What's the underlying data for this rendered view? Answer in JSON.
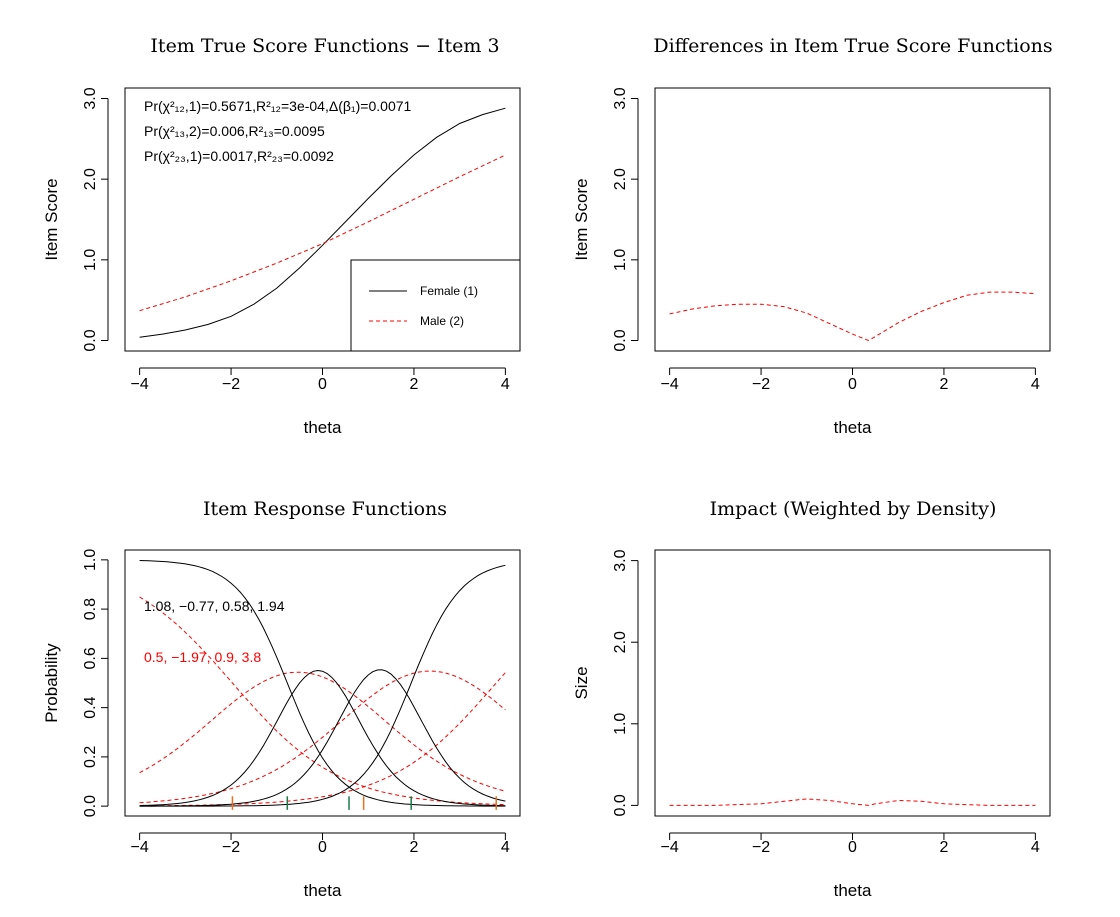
{
  "chart_data": [
    {
      "type": "line",
      "title": "Item True Score Functions − Item 3",
      "xlabel": "theta",
      "ylabel": "Item Score",
      "xlim": [
        -4,
        4
      ],
      "ylim": [
        0,
        3
      ],
      "xticks": [
        "-4",
        "-2",
        "0",
        "2",
        "4"
      ],
      "yticks": [
        "0.0",
        "1.0",
        "2.0",
        "3.0"
      ],
      "annotations": [
        {
          "text": "Pr(χ²₁₂,1)=0.5671,R²₁₂=3e-04,Δ(β₁)=0.0071"
        },
        {
          "text": "Pr(χ²₁₃,2)=0.006,R²₁₃=0.0095"
        },
        {
          "text": "Pr(χ²₂₃,1)=0.0017,R²₂₃=0.0092"
        }
      ],
      "legend": {
        "position": "bottom-right",
        "entries": [
          "Female (1)",
          "Male (2)"
        ]
      },
      "series": [
        {
          "name": "Female (1)",
          "color": "#000000",
          "dash": "solid",
          "x": [
            -4,
            -3.5,
            -3,
            -2.5,
            -2,
            -1.5,
            -1,
            -0.5,
            0,
            0.5,
            1,
            1.5,
            2,
            2.5,
            3,
            3.5,
            4
          ],
          "y": [
            0.04,
            0.08,
            0.13,
            0.2,
            0.3,
            0.45,
            0.65,
            0.9,
            1.18,
            1.47,
            1.76,
            2.04,
            2.3,
            2.52,
            2.69,
            2.8,
            2.88
          ]
        },
        {
          "name": "Male (2)",
          "color": "#ff0000",
          "dash": "dashed",
          "x": [
            -4,
            -3,
            -2,
            -1,
            0,
            1,
            2,
            3,
            4
          ],
          "y": [
            0.37,
            0.54,
            0.74,
            0.96,
            1.2,
            1.47,
            1.75,
            2.03,
            2.3
          ]
        }
      ]
    },
    {
      "type": "line",
      "title": "Differences in Item True Score Functions",
      "xlabel": "theta",
      "ylabel": "Item Score",
      "xlim": [
        -4,
        4
      ],
      "ylim": [
        0,
        3
      ],
      "xticks": [
        "-4",
        "-2",
        "0",
        "2",
        "4"
      ],
      "yticks": [
        "0.0",
        "1.0",
        "2.0",
        "3.0"
      ],
      "series": [
        {
          "name": "difference",
          "color": "#ff0000",
          "dash": "dashed",
          "x": [
            -4,
            -3.5,
            -3,
            -2.5,
            -2,
            -1.5,
            -1,
            -0.5,
            0,
            0.35,
            0.5,
            1,
            1.5,
            2,
            2.5,
            3,
            3.5,
            4
          ],
          "y": [
            0.33,
            0.39,
            0.43,
            0.45,
            0.45,
            0.42,
            0.34,
            0.21,
            0.08,
            0.0,
            0.05,
            0.22,
            0.36,
            0.47,
            0.56,
            0.6,
            0.6,
            0.58
          ]
        }
      ]
    },
    {
      "type": "line",
      "title": "Item Response Functions",
      "xlabel": "theta",
      "ylabel": "Probability",
      "xlim": [
        -4,
        4
      ],
      "ylim": [
        0,
        1
      ],
      "xticks": [
        "-4",
        "-2",
        "0",
        "2",
        "4"
      ],
      "yticks": [
        "0.0",
        "0.2",
        "0.4",
        "0.6",
        "0.8",
        "1.0"
      ],
      "annotations": [
        {
          "text": "1.08, −0.77, 0.58, 1.94",
          "color": "#000000"
        },
        {
          "text": "0.5, −1.97, 0.9, 3.8",
          "color": "#ff0000"
        }
      ],
      "group1_params": {
        "a": 1.08,
        "b": [
          -0.77,
          0.58,
          1.94
        ]
      },
      "group2_params": {
        "a": 0.5,
        "b": [
          -1.97,
          0.9,
          3.8
        ]
      },
      "threshold_ticks": [
        {
          "x": -0.77,
          "color": "#1a7a4a"
        },
        {
          "x": 0.58,
          "color": "#1a7a4a"
        },
        {
          "x": 1.94,
          "color": "#1a7a4a"
        },
        {
          "x": -1.97,
          "color": "#e87020"
        },
        {
          "x": 0.9,
          "color": "#e87020"
        },
        {
          "x": 3.8,
          "color": "#e87020"
        }
      ],
      "series": [
        {
          "name": "Group 1 category curves",
          "color": "#000000",
          "dash": "solid"
        },
        {
          "name": "Group 2 category curves",
          "color": "#ff0000",
          "dash": "dashed"
        }
      ]
    },
    {
      "type": "line",
      "title": "Impact (Weighted by Density)",
      "xlabel": "theta",
      "ylabel": "Size",
      "xlim": [
        -4,
        4
      ],
      "ylim": [
        0,
        3
      ],
      "xticks": [
        "-4",
        "-2",
        "0",
        "2",
        "4"
      ],
      "yticks": [
        "0.0",
        "1.0",
        "2.0",
        "3.0"
      ],
      "series": [
        {
          "name": "impact",
          "color": "#ff0000",
          "dash": "dashed",
          "x": [
            -4,
            -3,
            -2,
            -1.5,
            -1,
            -0.5,
            0,
            0.35,
            0.5,
            1,
            1.5,
            2,
            3,
            4
          ],
          "y": [
            0.0,
            0.0,
            0.02,
            0.05,
            0.08,
            0.06,
            0.02,
            0.0,
            0.02,
            0.06,
            0.05,
            0.02,
            0.0,
            0.0
          ]
        }
      ]
    }
  ]
}
